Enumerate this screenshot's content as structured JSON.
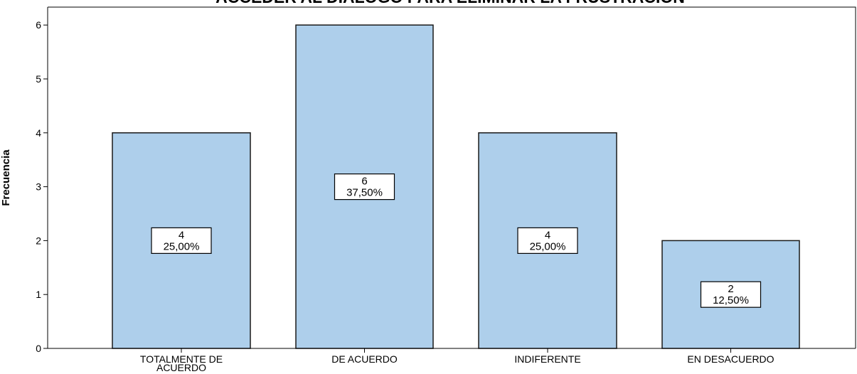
{
  "chart_data": {
    "type": "bar",
    "title": "ACCEDER AL DIALOGO PARA ELIMINAR LA FRUSTRACION",
    "xlabel": "",
    "ylabel": "Frecuencia",
    "categories": [
      [
        "TOTALMENTE DE",
        "ACUERDO"
      ],
      [
        "DE ACUERDO"
      ],
      [
        "INDIFERENTE"
      ],
      [
        "EN DESACUERDO"
      ]
    ],
    "values": [
      4,
      6,
      4,
      2
    ],
    "data_labels": [
      {
        "count": "4",
        "percent": "25,00%"
      },
      {
        "count": "6",
        "percent": "37,50%"
      },
      {
        "count": "4",
        "percent": "25,00%"
      },
      {
        "count": "2",
        "percent": "12,50%"
      }
    ],
    "yticks": [
      "0",
      "1",
      "2",
      "3",
      "4",
      "5",
      "6"
    ],
    "ylim": [
      0,
      6.3
    ],
    "grid": false,
    "bar_color": "#aecfeb",
    "bar_edge_color": "#1a1a1a"
  }
}
